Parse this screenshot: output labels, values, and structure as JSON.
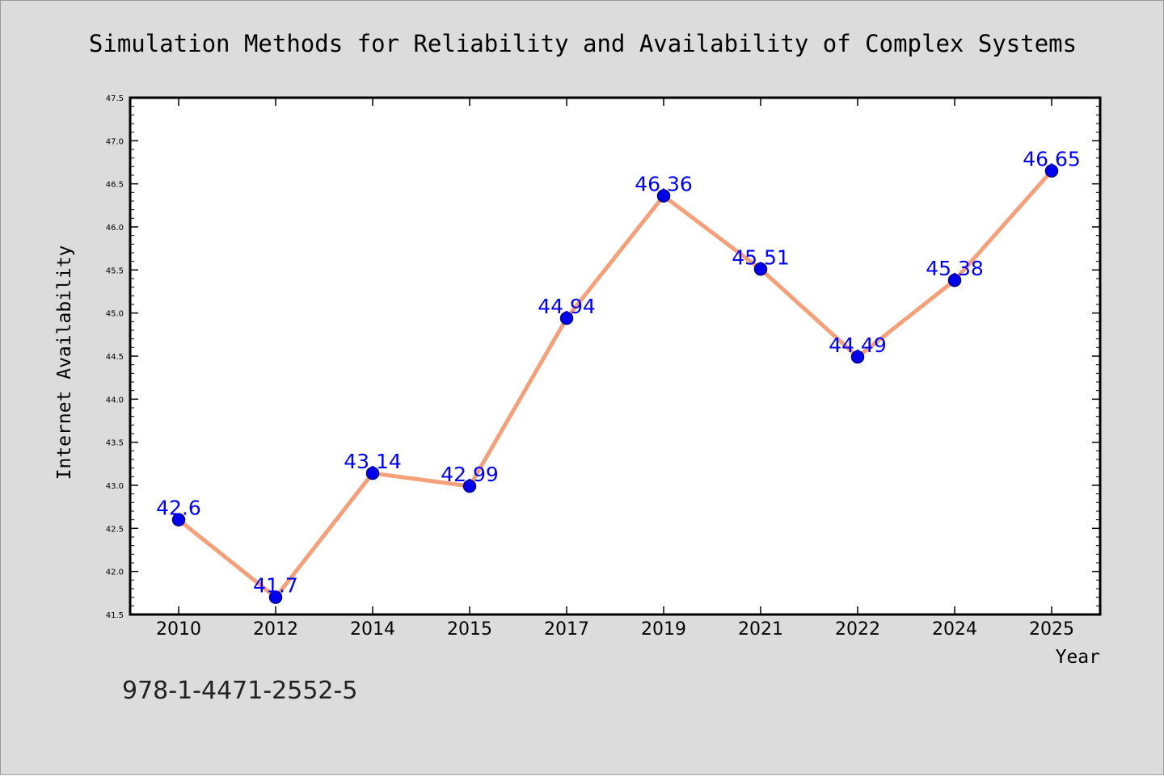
{
  "chart_data": {
    "type": "line",
    "title": "Simulation Methods for Reliability and Availability of Complex Systems",
    "xlabel": "Year",
    "ylabel": "Internet Availability",
    "categories": [
      "2010",
      "2012",
      "2014",
      "2015",
      "2017",
      "2019",
      "2021",
      "2022",
      "2024",
      "2025"
    ],
    "series": [
      {
        "values": [
          42.6,
          41.7,
          43.14,
          42.99,
          44.94,
          46.36,
          45.51,
          44.49,
          45.38,
          46.65
        ],
        "data_labels": [
          "42.6",
          "41.7",
          "43.14",
          "42.99",
          "44.94",
          "46.36",
          "45.51",
          "44.49",
          "45.38",
          "46.65"
        ]
      }
    ],
    "ylim": [
      41.5,
      47.5
    ],
    "yticks": [
      "41.5",
      "42.0",
      "42.5",
      "43.0",
      "43.5",
      "44.0",
      "44.5",
      "45.0",
      "45.5",
      "46.0",
      "46.5",
      "47.0",
      "47.5"
    ],
    "grid": false,
    "legend": "none",
    "colors": {
      "line": "#f4a07a",
      "marker": "#0000ee",
      "marker_edge": "#000080",
      "data_label": "#0000ff",
      "background": "#dcdcdc",
      "plot_area": "#ffffff"
    },
    "annotation": "978-1-4471-2552-5"
  }
}
